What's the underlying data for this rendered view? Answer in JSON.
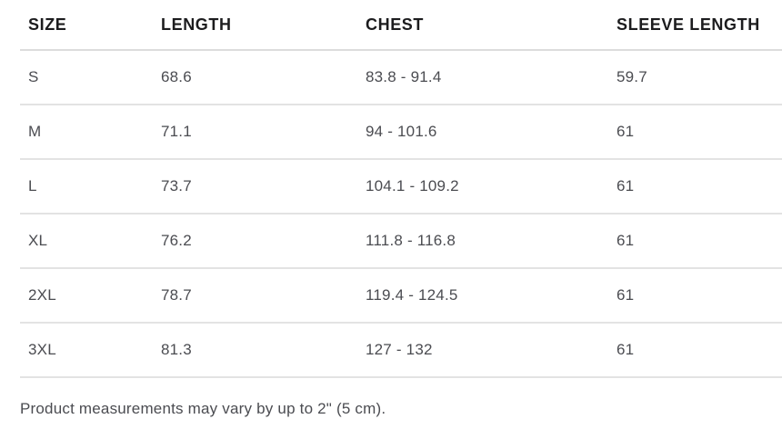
{
  "table": {
    "columns": [
      {
        "key": "size",
        "label": "SIZE"
      },
      {
        "key": "length",
        "label": "LENGTH"
      },
      {
        "key": "chest",
        "label": "CHEST"
      },
      {
        "key": "sleeve",
        "label": "SLEEVE LENGTH"
      }
    ],
    "rows": [
      {
        "size": "S",
        "length": "68.6",
        "chest": "83.8 - 91.4",
        "sleeve": "59.7"
      },
      {
        "size": "M",
        "length": "71.1",
        "chest": "94 - 101.6",
        "sleeve": "61"
      },
      {
        "size": "L",
        "length": "73.7",
        "chest": "104.1 - 109.2",
        "sleeve": "61"
      },
      {
        "size": "XL",
        "length": "76.2",
        "chest": "111.8 - 116.8",
        "sleeve": "61"
      },
      {
        "size": "2XL",
        "length": "78.7",
        "chest": "119.4 - 124.5",
        "sleeve": "61"
      },
      {
        "size": "3XL",
        "length": "81.3",
        "chest": "127 - 132",
        "sleeve": "61"
      }
    ]
  },
  "footer": {
    "note": "Product measurements may vary by up to 2\" (5 cm)."
  },
  "colors": {
    "background": "#ffffff",
    "header_text": "#1c1c1e",
    "body_text": "#4b4c51",
    "divider": "#e3e3e3"
  }
}
